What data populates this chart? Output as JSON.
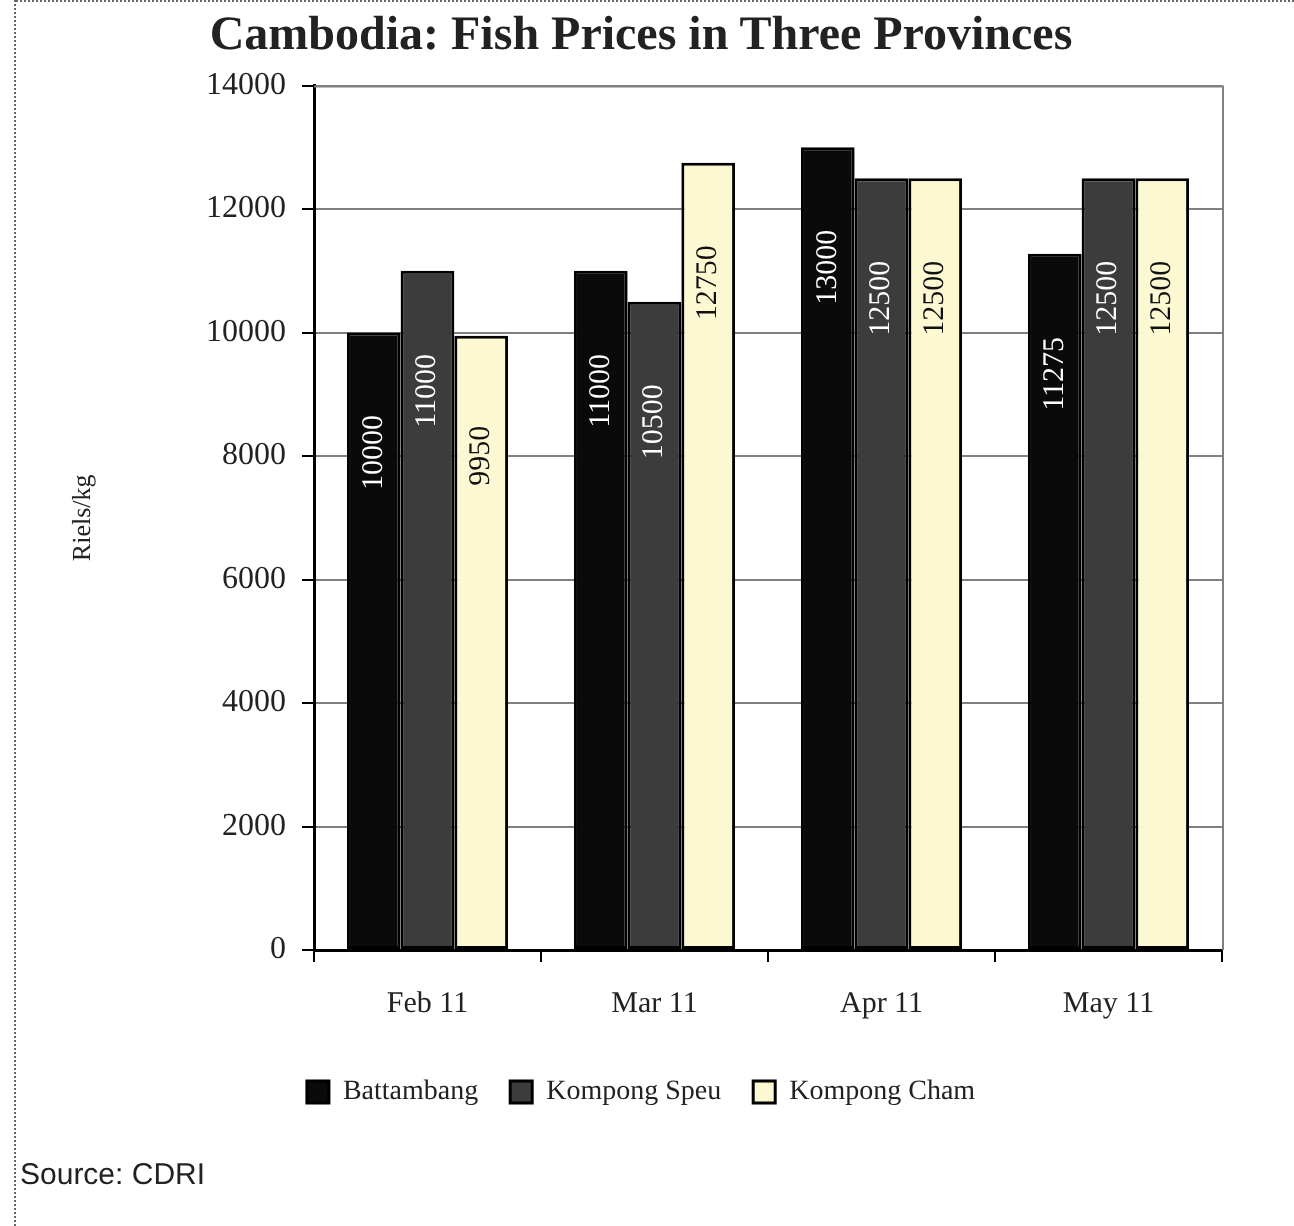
{
  "chart_data": {
    "type": "bar",
    "title": "Cambodia: Fish Prices in Three Provinces",
    "ylabel": "Riels/kg",
    "categories": [
      "Feb 11",
      "Mar 11",
      "Apr 11",
      "May 11"
    ],
    "series": [
      {
        "name": "Battambang",
        "color": "#0a0a0a",
        "values": [
          10000,
          11000,
          13000,
          11275
        ]
      },
      {
        "name": "Kompong Speu",
        "color": "#3c3c3c",
        "values": [
          11000,
          10500,
          12500,
          12500
        ]
      },
      {
        "name": "Kompong Cham",
        "color": "#fcf8d2",
        "values": [
          9950,
          12750,
          12500,
          12500
        ]
      }
    ],
    "ylim": [
      0,
      14000
    ],
    "yticks": [
      0,
      2000,
      4000,
      6000,
      8000,
      10000,
      12000,
      14000
    ],
    "grid": "y",
    "legend": "bottom",
    "data_labels": true,
    "annotations": [
      "Source: CDRI"
    ]
  }
}
